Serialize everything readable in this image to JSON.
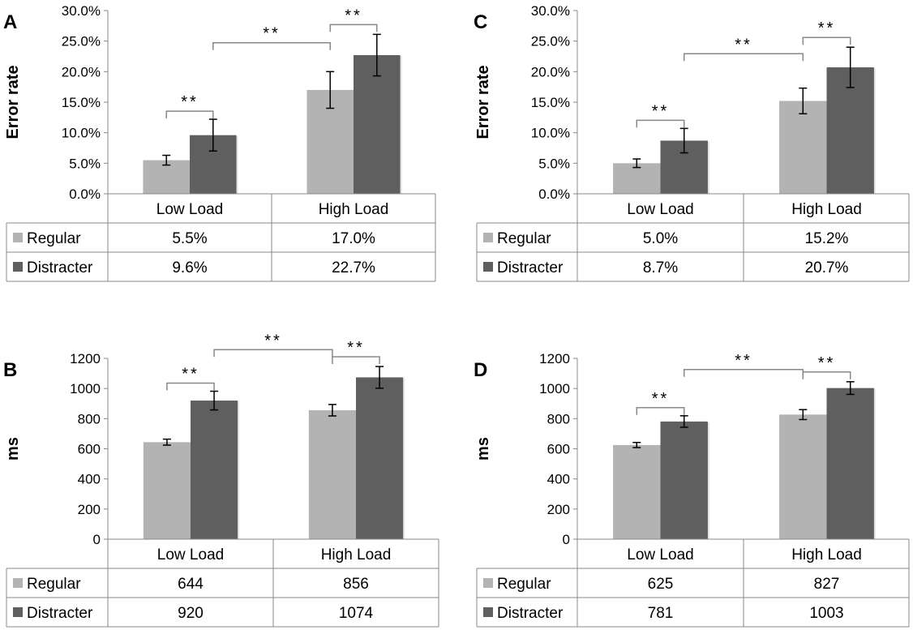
{
  "colors": {
    "regular": "#b3b3b3",
    "distracter": "#5f5f5f",
    "axis": "#888888",
    "text": "#000000"
  },
  "chart_data": [
    {
      "panel": "A",
      "type": "bar",
      "ylabel": "Error rate",
      "unit": "%",
      "categories": [
        "Low Load",
        "High Load"
      ],
      "ylim": [
        0,
        30
      ],
      "ticks": [
        0,
        5,
        10,
        15,
        20,
        25,
        30
      ],
      "tick_labels": [
        "0.0%",
        "5.0%",
        "10.0%",
        "15.0%",
        "20.0%",
        "25.0%",
        "30.0%"
      ],
      "series": [
        {
          "name": "Regular",
          "values": [
            5.5,
            17.0
          ],
          "errors": [
            0.8,
            3.0
          ],
          "labels": [
            "5.5%",
            "17.0%"
          ]
        },
        {
          "name": "Distracter",
          "values": [
            9.6,
            22.7
          ],
          "errors": [
            2.6,
            3.4
          ],
          "labels": [
            "9.6%",
            "22.7%"
          ]
        }
      ],
      "annotations": [
        "**",
        "**",
        "**"
      ]
    },
    {
      "panel": "B",
      "type": "bar",
      "ylabel": "ms",
      "unit": "",
      "categories": [
        "Low Load",
        "High Load"
      ],
      "ylim": [
        0,
        1200
      ],
      "ticks": [
        0,
        200,
        400,
        600,
        800,
        1000,
        1200
      ],
      "tick_labels": [
        "0",
        "200",
        "400",
        "600",
        "800",
        "1000",
        "1200"
      ],
      "series": [
        {
          "name": "Regular",
          "values": [
            644,
            856
          ],
          "errors": [
            20,
            38
          ],
          "labels": [
            "644",
            "856"
          ]
        },
        {
          "name": "Distracter",
          "values": [
            920,
            1074
          ],
          "errors": [
            62,
            72
          ],
          "labels": [
            "920",
            "1074"
          ]
        }
      ],
      "annotations": [
        "**",
        "**",
        "**"
      ]
    },
    {
      "panel": "C",
      "type": "bar",
      "ylabel": "Error rate",
      "unit": "%",
      "categories": [
        "Low Load",
        "High Load"
      ],
      "ylim": [
        0,
        30
      ],
      "ticks": [
        0,
        5,
        10,
        15,
        20,
        25,
        30
      ],
      "tick_labels": [
        "0.0%",
        "5.0%",
        "10.0%",
        "15.0%",
        "20.0%",
        "25.0%",
        "30.0%"
      ],
      "series": [
        {
          "name": "Regular",
          "values": [
            5.0,
            15.2
          ],
          "errors": [
            0.7,
            2.1
          ],
          "labels": [
            "5.0%",
            "15.2%"
          ]
        },
        {
          "name": "Distracter",
          "values": [
            8.7,
            20.7
          ],
          "errors": [
            2.0,
            3.3
          ],
          "labels": [
            "8.7%",
            "20.7%"
          ]
        }
      ],
      "annotations": [
        "**",
        "**",
        "**"
      ]
    },
    {
      "panel": "D",
      "type": "bar",
      "ylabel": "ms",
      "unit": "",
      "categories": [
        "Low Load",
        "High Load"
      ],
      "ylim": [
        0,
        1200
      ],
      "ticks": [
        0,
        200,
        400,
        600,
        800,
        1000,
        1200
      ],
      "tick_labels": [
        "0",
        "200",
        "400",
        "600",
        "800",
        "1000",
        "1200"
      ],
      "series": [
        {
          "name": "Regular",
          "values": [
            625,
            827
          ],
          "errors": [
            17,
            33
          ],
          "labels": [
            "625",
            "827"
          ]
        },
        {
          "name": "Distracter",
          "values": [
            781,
            1003
          ],
          "errors": [
            38,
            42
          ],
          "labels": [
            "781",
            "1003"
          ]
        }
      ],
      "annotations": [
        "**",
        "**",
        "**"
      ]
    }
  ]
}
